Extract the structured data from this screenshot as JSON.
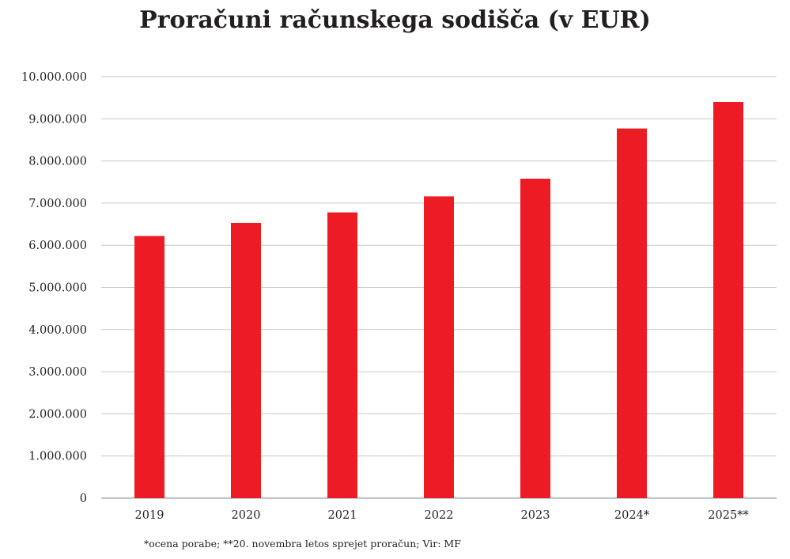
{
  "chart_data": {
    "type": "bar",
    "title": "Proračuni računskega sodišča (v EUR)",
    "categories": [
      "2019",
      "2020",
      "2021",
      "2022",
      "2023",
      "2024*",
      "2025**"
    ],
    "values": [
      6220000,
      6530000,
      6780000,
      7160000,
      7580000,
      8770000,
      9400000
    ],
    "ylim": [
      0,
      10000000
    ],
    "yticks": [
      0,
      1000000,
      2000000,
      3000000,
      4000000,
      5000000,
      6000000,
      7000000,
      8000000,
      9000000,
      10000000
    ],
    "ytick_labels": [
      "0",
      "1.000.000",
      "2.000.000",
      "3.000.000",
      "4.000.000",
      "5.000.000",
      "6.000.000",
      "7.000.000",
      "8.000.000",
      "9.000.000",
      "10.000.000"
    ],
    "grid": true,
    "bar_color": "#ed1c24",
    "footnote": "*ocena porabe; **20. novembra letos sprejet proračun; Vir: MF"
  }
}
